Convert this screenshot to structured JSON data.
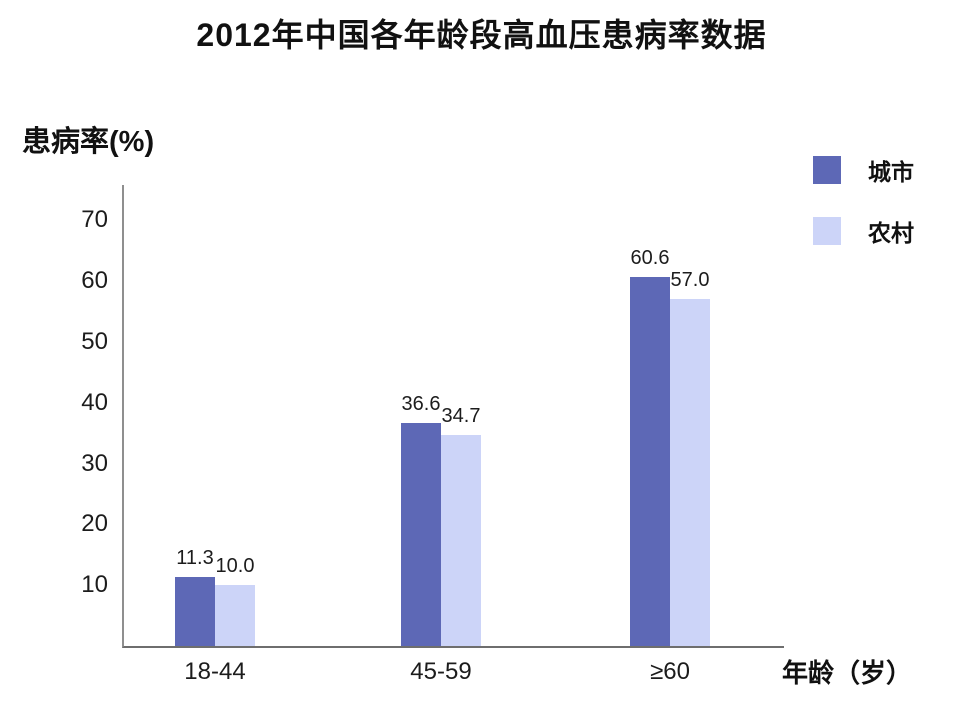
{
  "chart_data": {
    "type": "bar",
    "title": "2012年中国各年龄段高血压患病率数据",
    "ylabel": "患病率(%)",
    "xlabel": "年龄（岁）",
    "categories": [
      "18-44",
      "45-59",
      "≥60"
    ],
    "series": [
      {
        "name": "城市",
        "color": "#5d68b6",
        "values": [
          11.3,
          36.6,
          60.6
        ],
        "labels": [
          "11.3",
          "36.6",
          "60.6"
        ]
      },
      {
        "name": "农村",
        "color": "#ccd4f8",
        "values": [
          10.0,
          34.7,
          57.0
        ],
        "labels": [
          "10.0",
          "34.7",
          "57.0"
        ]
      }
    ],
    "yticks": [
      10,
      20,
      30,
      40,
      50,
      60,
      70
    ],
    "ylim": [
      0,
      75.8
    ],
    "grid": false,
    "legend_position": "top-right",
    "value_labels": true
  },
  "colors": {
    "axis": "#8f8f8f",
    "text": "#1c1c1c",
    "background": "#ffffff"
  }
}
